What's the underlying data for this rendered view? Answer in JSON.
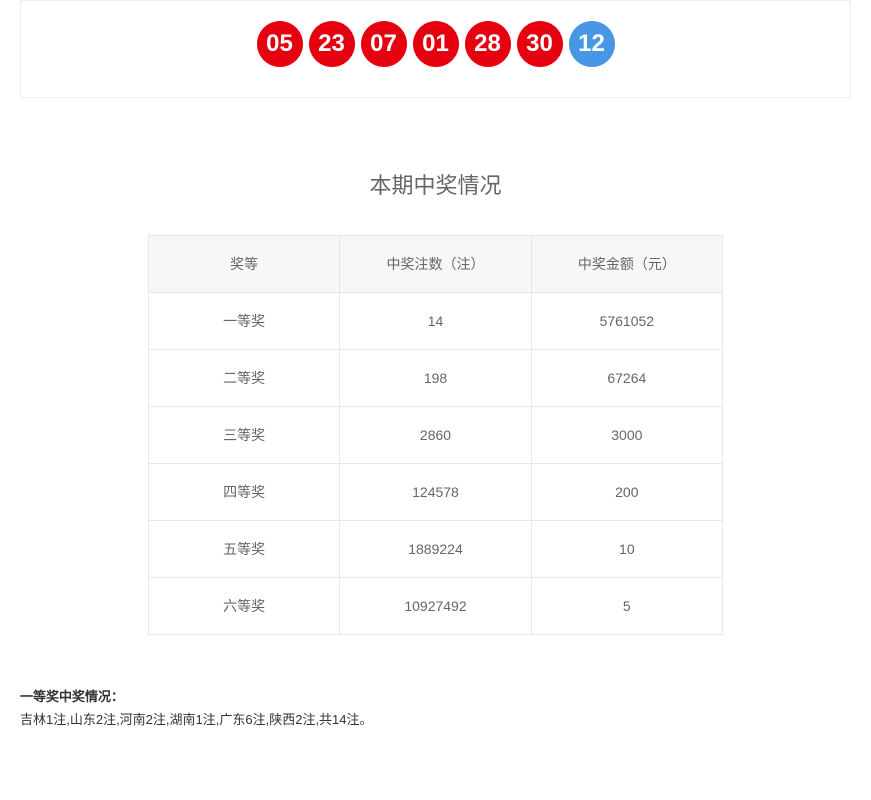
{
  "balls": {
    "red_color": "#e6000f",
    "blue_color": "#4797e6",
    "items": [
      {
        "num": "05",
        "type": "red"
      },
      {
        "num": "23",
        "type": "red"
      },
      {
        "num": "07",
        "type": "red"
      },
      {
        "num": "01",
        "type": "red"
      },
      {
        "num": "28",
        "type": "red"
      },
      {
        "num": "30",
        "type": "red"
      },
      {
        "num": "12",
        "type": "blue"
      }
    ]
  },
  "section_title": "本期中奖情况",
  "table": {
    "headers": [
      "奖等",
      "中奖注数（注）",
      "中奖金额（元）"
    ],
    "col_widths": [
      "33.3%",
      "33.3%",
      "33.3%"
    ],
    "rows": [
      [
        "一等奖",
        "14",
        "5761052"
      ],
      [
        "二等奖",
        "198",
        "67264"
      ],
      [
        "三等奖",
        "2860",
        "3000"
      ],
      [
        "四等奖",
        "124578",
        "200"
      ],
      [
        "五等奖",
        "1889224",
        "10"
      ],
      [
        "六等奖",
        "10927492",
        "5"
      ]
    ]
  },
  "footer": {
    "label": "一等奖中奖情况：",
    "text": "吉林1注,山东2注,河南2注,湖南1注,广东6注,陕西2注,共14注。"
  }
}
